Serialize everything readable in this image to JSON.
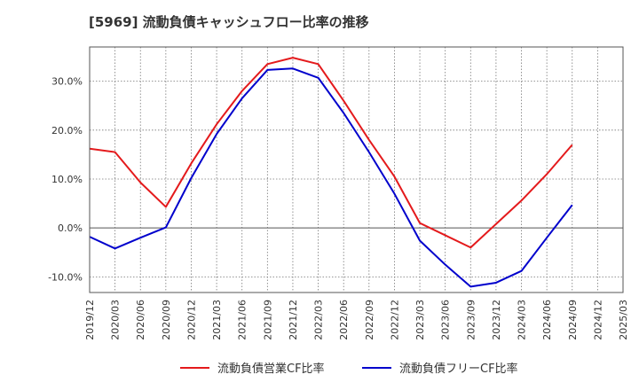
{
  "title": "[5969]  流動負債キャッシュフロー比率の推移",
  "chart_data": {
    "type": "line",
    "title": "[5969]  流動負債キャッシュフロー比率の推移",
    "xlabel": "",
    "ylabel": "",
    "x": [
      "2019/12",
      "2020/03",
      "2020/06",
      "2020/09",
      "2020/12",
      "2021/03",
      "2021/06",
      "2021/09",
      "2021/12",
      "2022/03",
      "2022/06",
      "2022/09",
      "2022/12",
      "2023/03",
      "2023/06",
      "2023/09",
      "2023/12",
      "2024/03",
      "2024/06",
      "2024/09",
      "2024/12",
      "2025/03"
    ],
    "yticks": [
      -10,
      0,
      10,
      20,
      30
    ],
    "ytick_labels": [
      "-10.0%",
      "0.0%",
      "10.0%",
      "20.0%",
      "30.0%"
    ],
    "ylim": [
      -13.2,
      37.0
    ],
    "grid": true,
    "legend_position": "bottom",
    "series": [
      {
        "name": "流動負債営業CF比率",
        "color": "#e41a1c",
        "values": [
          16.2,
          15.5,
          9.3,
          4.3,
          13.2,
          21.2,
          28.0,
          33.5,
          34.8,
          33.5,
          26.0,
          18.0,
          10.5,
          1.0,
          -1.5,
          -4.0,
          0.8,
          5.6,
          11.0,
          17.0,
          null,
          null
        ]
      },
      {
        "name": "流動負債フリーCF比率",
        "color": "#0000cc",
        "values": [
          -1.8,
          -4.2,
          -2.0,
          0.1,
          10.2,
          19.2,
          26.5,
          32.3,
          32.6,
          30.7,
          23.5,
          15.5,
          7.0,
          -2.6,
          -7.5,
          -12.0,
          -11.2,
          -8.8,
          -2.0,
          4.7,
          null,
          null
        ]
      }
    ]
  }
}
